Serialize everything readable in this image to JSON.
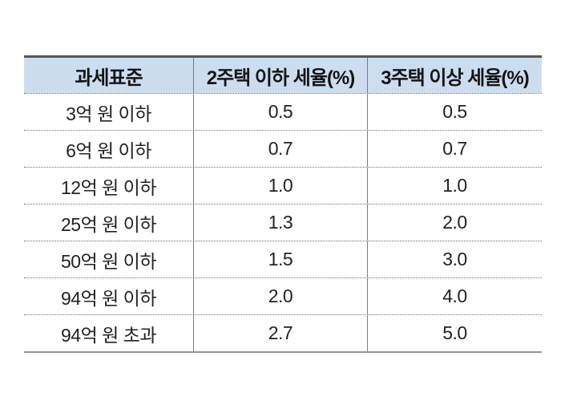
{
  "chart_data": {
    "type": "table",
    "title": "",
    "columns": [
      "과세표준",
      "2주택 이하 세율(%)",
      "3주택 이상 세율(%)"
    ],
    "rows": [
      [
        "3억 원 이하",
        "0.5",
        "0.5"
      ],
      [
        "6억 원 이하",
        "0.7",
        "0.7"
      ],
      [
        "12억 원 이하",
        "1.0",
        "1.0"
      ],
      [
        "25억 원 이하",
        "1.3",
        "2.0"
      ],
      [
        "50억 원 이하",
        "1.5",
        "3.0"
      ],
      [
        "94억 원 이하",
        "2.0",
        "4.0"
      ],
      [
        "94억 원 초과",
        "2.7",
        "5.0"
      ]
    ],
    "colors": {
      "header_background": "#cdddf0",
      "top_border": "#55575b",
      "bottom_border": "#94969a",
      "column_divider": "#7b7c7f",
      "row_dotted_separator": "#6f6f6f",
      "text": "#242122"
    }
  }
}
